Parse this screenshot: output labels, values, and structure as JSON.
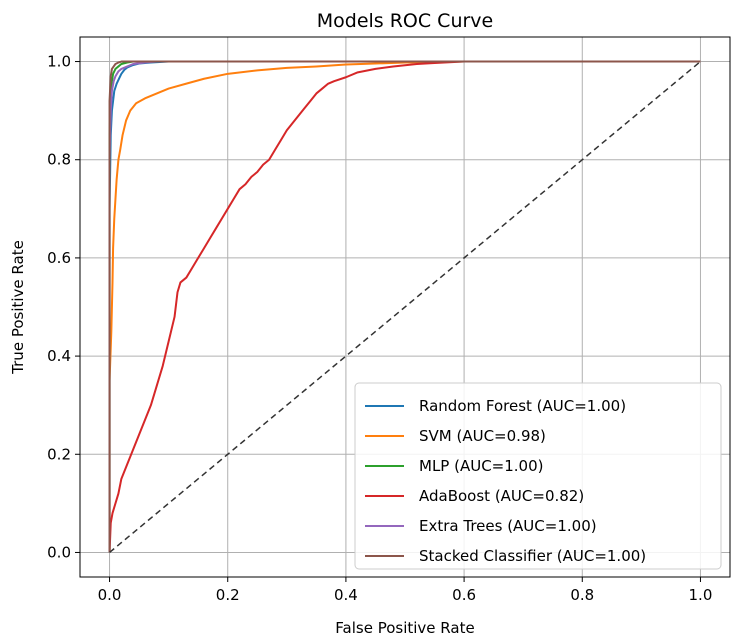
{
  "chart_data": {
    "type": "line",
    "title": "Models ROC Curve",
    "xlabel": "False Positive Rate",
    "ylabel": "True Positive Rate",
    "xlim": [
      -0.05,
      1.05
    ],
    "ylim": [
      -0.05,
      1.05
    ],
    "xticks": [
      "0.0",
      "0.2",
      "0.4",
      "0.6",
      "0.8",
      "1.0"
    ],
    "yticks": [
      "0.0",
      "0.2",
      "0.4",
      "0.6",
      "0.8",
      "1.0"
    ],
    "grid": true,
    "legend_position": "lower-right",
    "series": [
      {
        "name": "Random Forest (AUC=1.00)",
        "color": "#1f77b4",
        "x": [
          0,
          0,
          0.002,
          0.004,
          0.006,
          0.008,
          0.012,
          0.016,
          0.02,
          0.025,
          0.03,
          0.04,
          0.05,
          0.07,
          0.1,
          1.0
        ],
        "y": [
          0,
          0.7,
          0.85,
          0.9,
          0.92,
          0.94,
          0.955,
          0.965,
          0.975,
          0.983,
          0.988,
          0.993,
          0.996,
          0.998,
          1.0,
          1.0
        ]
      },
      {
        "name": "SVM (AUC=0.98)",
        "color": "#ff7f0e",
        "x": [
          0,
          0,
          0.003,
          0.005,
          0.006,
          0.008,
          0.01,
          0.012,
          0.015,
          0.018,
          0.022,
          0.028,
          0.035,
          0.045,
          0.06,
          0.08,
          0.1,
          0.13,
          0.16,
          0.2,
          0.25,
          0.3,
          0.35,
          0.4,
          0.45,
          0.5,
          0.55,
          0.6,
          1.0
        ],
        "y": [
          0,
          0.35,
          0.45,
          0.55,
          0.62,
          0.68,
          0.72,
          0.76,
          0.8,
          0.82,
          0.85,
          0.88,
          0.9,
          0.915,
          0.925,
          0.935,
          0.945,
          0.955,
          0.965,
          0.975,
          0.982,
          0.987,
          0.99,
          0.994,
          0.996,
          0.998,
          0.999,
          1.0,
          1.0
        ]
      },
      {
        "name": "MLP (AUC=1.00)",
        "color": "#2ca02c",
        "x": [
          0,
          0,
          0.002,
          0.004,
          0.006,
          0.01,
          0.015,
          0.02,
          0.03,
          0.04,
          1.0
        ],
        "y": [
          0,
          0.85,
          0.93,
          0.96,
          0.975,
          0.985,
          0.99,
          0.995,
          0.998,
          1.0,
          1.0
        ]
      },
      {
        "name": "AdaBoost (AUC=0.82)",
        "color": "#d62728",
        "x": [
          0,
          0.002,
          0.005,
          0.01,
          0.015,
          0.02,
          0.03,
          0.04,
          0.05,
          0.06,
          0.07,
          0.08,
          0.09,
          0.1,
          0.11,
          0.115,
          0.12,
          0.13,
          0.14,
          0.15,
          0.16,
          0.17,
          0.18,
          0.19,
          0.2,
          0.21,
          0.22,
          0.23,
          0.24,
          0.25,
          0.26,
          0.27,
          0.28,
          0.29,
          0.3,
          0.31,
          0.32,
          0.33,
          0.34,
          0.35,
          0.36,
          0.37,
          0.38,
          0.4,
          0.42,
          0.45,
          0.48,
          0.52,
          0.55,
          0.6,
          1.0
        ],
        "y": [
          0,
          0.06,
          0.08,
          0.1,
          0.12,
          0.15,
          0.18,
          0.21,
          0.24,
          0.27,
          0.3,
          0.34,
          0.38,
          0.43,
          0.48,
          0.53,
          0.55,
          0.56,
          0.58,
          0.6,
          0.62,
          0.64,
          0.66,
          0.68,
          0.7,
          0.72,
          0.74,
          0.75,
          0.765,
          0.775,
          0.79,
          0.8,
          0.82,
          0.84,
          0.86,
          0.875,
          0.89,
          0.905,
          0.92,
          0.935,
          0.945,
          0.955,
          0.96,
          0.968,
          0.978,
          0.985,
          0.99,
          0.995,
          0.997,
          1.0,
          1.0
        ]
      },
      {
        "name": "Extra Trees (AUC=1.00)",
        "color": "#9467bd",
        "x": [
          0,
          0,
          0.002,
          0.004,
          0.007,
          0.01,
          0.015,
          0.02,
          0.03,
          0.04,
          0.06,
          0.08,
          1.0
        ],
        "y": [
          0,
          0.8,
          0.9,
          0.94,
          0.96,
          0.97,
          0.98,
          0.985,
          0.99,
          0.995,
          0.998,
          1.0,
          1.0
        ]
      },
      {
        "name": "Stacked Classifier (AUC=1.00)",
        "color": "#8c564b",
        "x": [
          0,
          0,
          0.002,
          0.004,
          0.007,
          0.01,
          0.015,
          0.02,
          1.0
        ],
        "y": [
          0,
          0.92,
          0.97,
          0.985,
          0.99,
          0.995,
          0.998,
          1.0,
          1.0
        ]
      }
    ],
    "diagonal": {
      "x": [
        0,
        1
      ],
      "y": [
        0,
        1
      ],
      "color": "#333333",
      "style": "dashed"
    }
  }
}
